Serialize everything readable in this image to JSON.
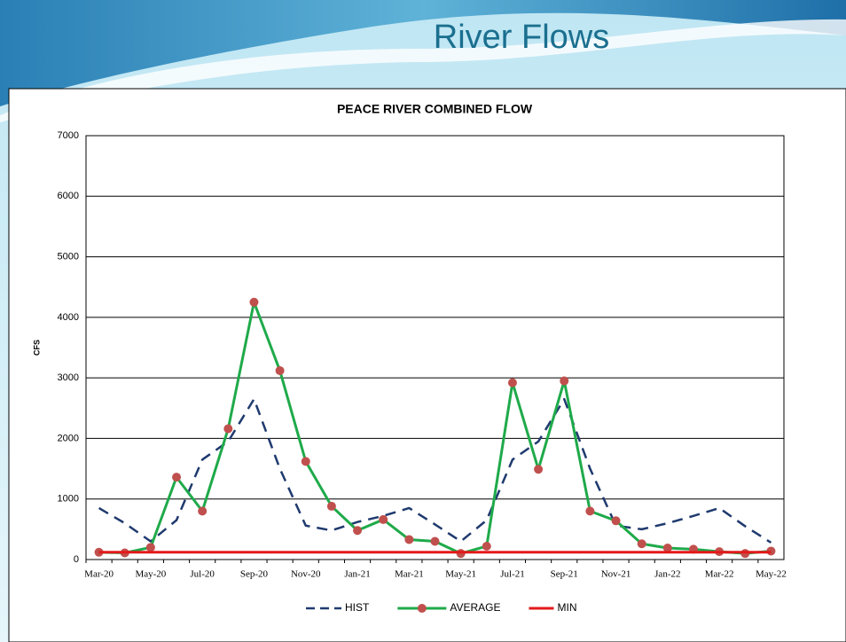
{
  "slide_title": "River Flows",
  "chart_data": {
    "type": "line",
    "title": "PEACE  RIVER COMBINED FLOW",
    "y_label": "CFS",
    "categories": [
      "Mar-20",
      null,
      "May-20",
      null,
      "Jul-20",
      null,
      "Sep-20",
      null,
      "Nov-20",
      null,
      "Jan-21",
      null,
      "Mar-21",
      null,
      "May-21",
      null,
      "Jul-21",
      null,
      "Sep-21",
      null,
      "Nov-21",
      null,
      "Jan-22",
      null,
      "Mar-22",
      null,
      "May-22"
    ],
    "series": [
      {
        "name": "HIST",
        "color": "#1f3a6e",
        "dashed": true,
        "markers": false,
        "values": [
          850,
          600,
          300,
          650,
          1650,
          1950,
          2650,
          1500,
          560,
          480,
          620,
          720,
          850,
          580,
          300,
          650,
          1650,
          1950,
          2650,
          1500,
          560,
          500,
          600,
          720,
          850,
          550,
          280
        ]
      },
      {
        "name": "AVERAGE",
        "color": "#1faa4a",
        "dashed": false,
        "markers": true,
        "marker_color": "#c0504d",
        "values": [
          120,
          110,
          200,
          1360,
          800,
          2160,
          4250,
          3120,
          1620,
          880,
          480,
          660,
          330,
          300,
          100,
          220,
          2920,
          1490,
          2950,
          800,
          640,
          260,
          190,
          170,
          130,
          100,
          140
        ]
      },
      {
        "name": "MIN",
        "color": "#e3191b",
        "dashed": false,
        "markers": false,
        "values": [
          120,
          120,
          120,
          120,
          120,
          120,
          120,
          120,
          120,
          120,
          120,
          120,
          120,
          120,
          120,
          120,
          120,
          120,
          120,
          120,
          120,
          120,
          120,
          120,
          120,
          120,
          120
        ]
      }
    ],
    "ylim": [
      0,
      7000
    ],
    "yticks": [
      0,
      1000,
      2000,
      3000,
      4000,
      5000,
      6000,
      7000
    ],
    "grid": true,
    "legend": "bottom"
  }
}
